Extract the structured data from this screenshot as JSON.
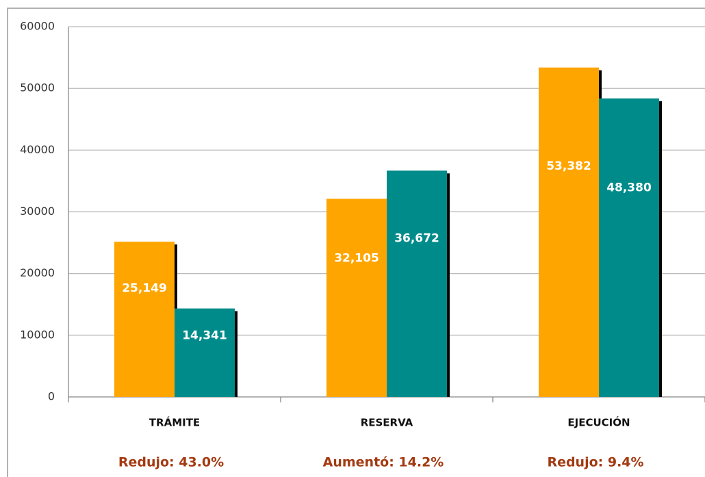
{
  "chart_data": {
    "type": "bar",
    "categories": [
      "TRÁMITE",
      "RESERVA",
      "EJECUCIÓN"
    ],
    "series": [
      {
        "color": "#ffa500",
        "values": [
          25149,
          32105,
          53382
        ],
        "value_labels": [
          "25,149",
          "32,105",
          "53,382"
        ]
      },
      {
        "color": "#008b8b",
        "values": [
          14341,
          36672,
          48380
        ],
        "value_labels": [
          "14,341",
          "36,672",
          "48,380"
        ]
      }
    ],
    "annotations": [
      "Redujo: 43.0%",
      "Aumentó: 14.2%",
      "Redujo: 9.4%"
    ],
    "ylim": [
      0,
      60000
    ],
    "yticks": [
      0,
      10000,
      20000,
      30000,
      40000,
      50000,
      60000
    ],
    "grid": true
  }
}
